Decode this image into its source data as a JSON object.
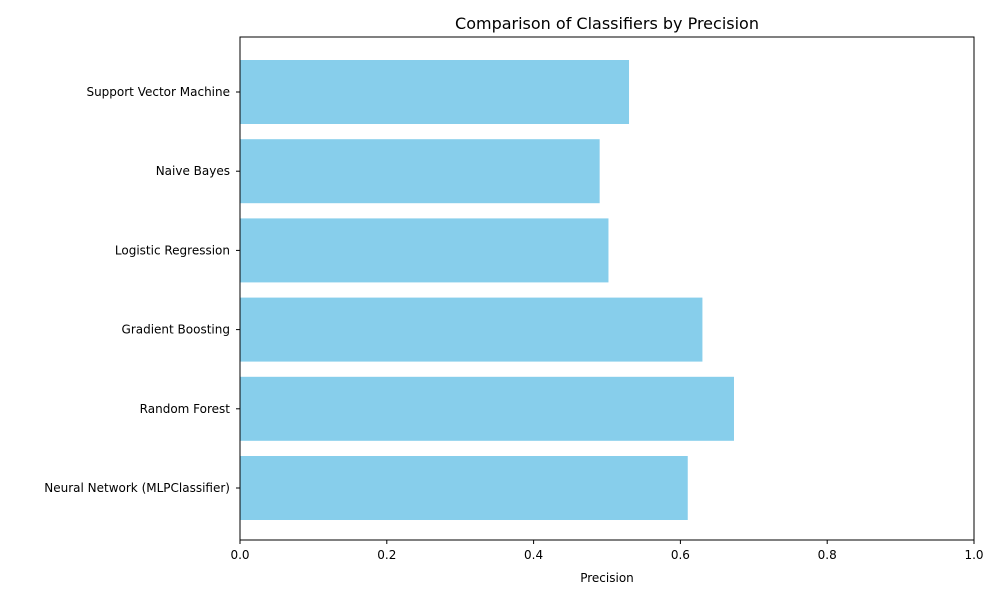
{
  "chart_data": {
    "type": "bar",
    "orientation": "horizontal",
    "title": "Comparison of Classifiers by Precision",
    "xlabel": "Precision",
    "ylabel": "",
    "xlim": [
      0,
      1
    ],
    "x_ticks": [
      "0.0",
      "0.2",
      "0.4",
      "0.6",
      "0.8",
      "1.0"
    ],
    "x_tick_values": [
      0,
      0.2,
      0.4,
      0.6,
      0.8,
      1.0
    ],
    "grid": false,
    "legend": "none",
    "bar_color": "#87ceeb",
    "categories": [
      "Support Vector Machine",
      "Naive Bayes",
      "Logistic Regression",
      "Gradient Boosting",
      "Random Forest",
      "Neural Network (MLPClassifier)"
    ],
    "values": [
      0.53,
      0.49,
      0.502,
      0.63,
      0.673,
      0.61
    ]
  }
}
